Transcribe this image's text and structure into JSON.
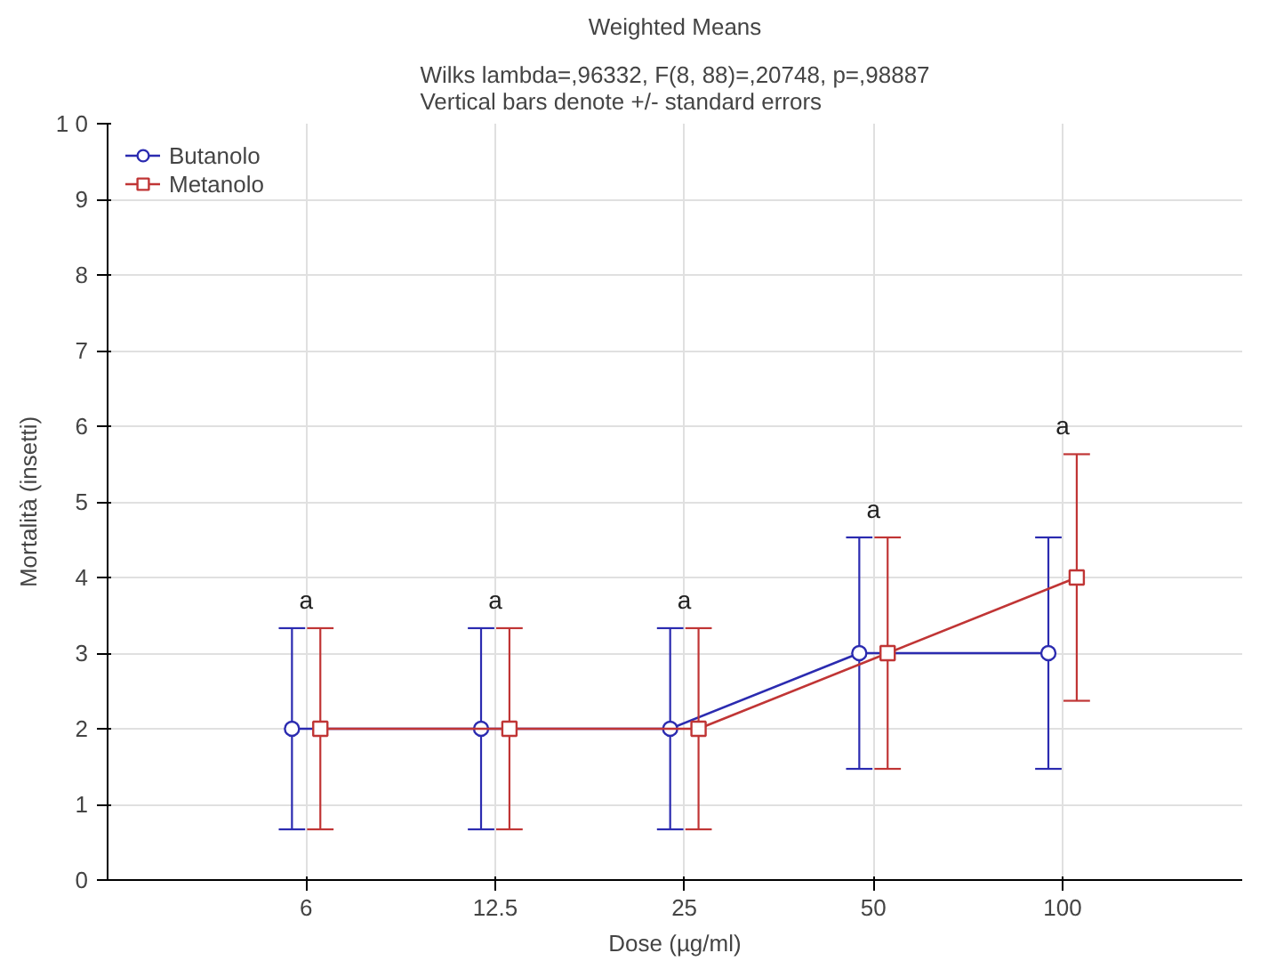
{
  "chart_data": {
    "type": "line",
    "title": "Weighted Means",
    "subtitle": "Wilks lambda=,96332, F(8, 88)=,20748, p=,98887\nVertical bars denote +/- standard errors",
    "xlabel": "Dose (µg/ml)",
    "ylabel": "Mortalità (insetti)",
    "categories": [
      "6",
      "12.5",
      "25",
      "50",
      "100"
    ],
    "series": [
      {
        "name": "Butanolo",
        "color": "#2b2bb0",
        "marker": "circle",
        "values": [
          2,
          2,
          2,
          3,
          3
        ],
        "errors": [
          1.33,
          1.33,
          1.33,
          1.53,
          1.53
        ]
      },
      {
        "name": "Metanolo",
        "color": "#c03535",
        "marker": "square",
        "values": [
          2,
          2,
          2,
          3,
          4
        ],
        "errors": [
          1.33,
          1.33,
          1.33,
          1.53,
          1.63
        ]
      }
    ],
    "ylim": [
      0,
      10
    ],
    "yticks": [
      0,
      1,
      2,
      3,
      4,
      5,
      6,
      7,
      8,
      9,
      {
        "value": 10,
        "label": "1 0"
      }
    ],
    "annotations": [
      "a",
      "a",
      "a",
      "a",
      "a"
    ],
    "grid": true,
    "legend": "top left",
    "line_style": "solid"
  }
}
